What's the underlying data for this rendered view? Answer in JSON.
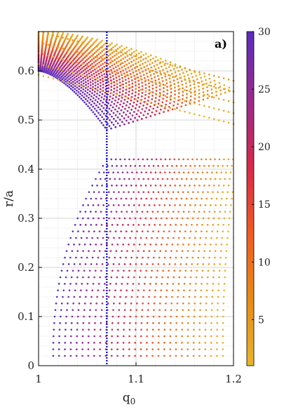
{
  "chart_data": {
    "type": "scatter",
    "panel_label": "a)",
    "xlabel": "q",
    "xlabel_sub": "0",
    "ylabel": "r/a",
    "xlim": [
      1,
      1.2
    ],
    "ylim": [
      0,
      0.68
    ],
    "x_ticks": [
      1,
      1.1,
      1.2
    ],
    "x_tick_labels": [
      "1",
      "1.1",
      "1.2"
    ],
    "y_ticks": [
      0,
      0.1,
      0.2,
      0.3,
      0.4,
      0.5,
      0.6
    ],
    "y_tick_labels": [
      "0",
      "0.1",
      "0.2",
      "0.3",
      "0.4",
      "0.5",
      "0.6"
    ],
    "grid": true,
    "vertical_reference_line": {
      "x": 1.07,
      "color": "#1a1adc",
      "style": "dotted"
    },
    "colorbar": {
      "min": 1,
      "max": 30,
      "ticks": [
        5,
        10,
        15,
        20,
        25,
        30
      ],
      "tick_labels": [
        "5",
        "10",
        "15",
        "20",
        "25",
        "30"
      ],
      "colors": [
        "#e8b42a",
        "#e98a14",
        "#f05a22",
        "#d8284a",
        "#9a2a8e",
        "#5a2cc0"
      ]
    },
    "series_description_values": {
      "resonance_surfaces_m_over_n_family": "points colored by mode number n from 1 to 30",
      "outer_arcs_q_range": [
        1.0,
        1.2
      ],
      "outer_arcs_r_range": [
        0.5,
        0.68
      ],
      "gap_r_range": [
        0.43,
        0.49
      ],
      "inner_boundary_at_q0_1": 0.0
    }
  }
}
